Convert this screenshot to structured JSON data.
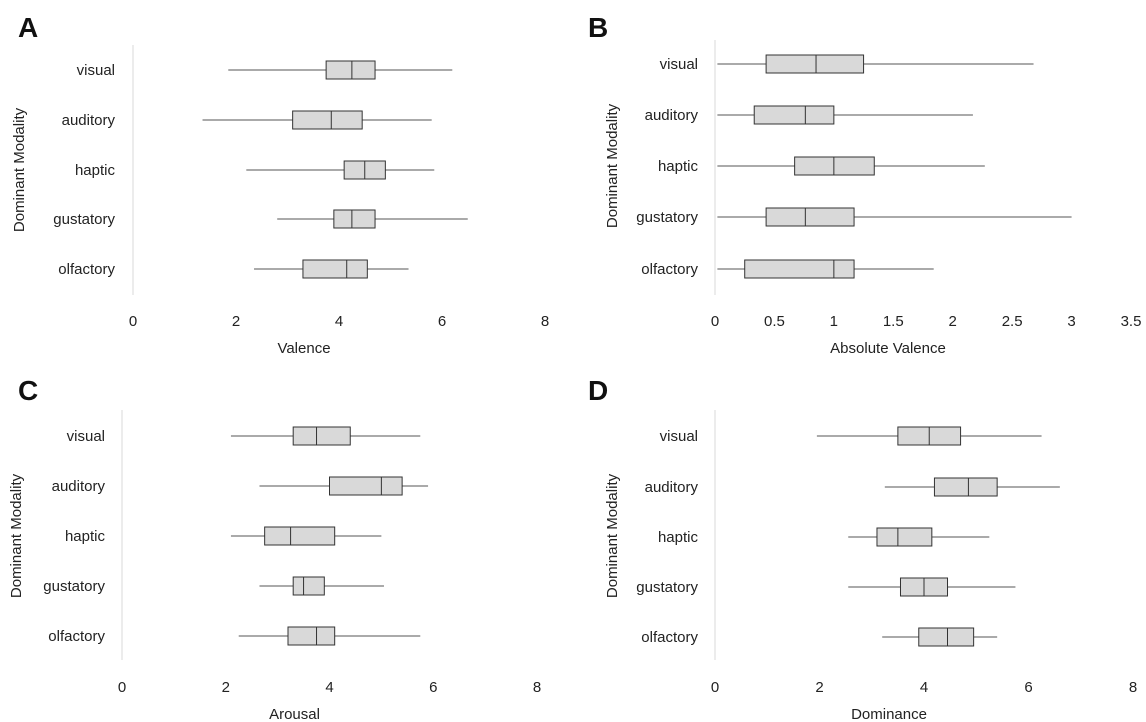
{
  "chart_data": [
    {
      "type": "box",
      "panel": "A",
      "xlabel": "Valence",
      "ylabel": "Dominant Modality",
      "xlim": [
        0,
        8
      ],
      "xticks": [
        "0",
        "2",
        "4",
        "6",
        "8"
      ],
      "categories": [
        "visual",
        "auditory",
        "haptic",
        "gustatory",
        "olfactory"
      ],
      "boxes": [
        {
          "min": 1.85,
          "q1": 3.75,
          "median": 4.25,
          "q3": 4.7,
          "max": 6.2
        },
        {
          "min": 1.35,
          "q1": 3.1,
          "median": 3.85,
          "q3": 4.45,
          "max": 5.8
        },
        {
          "min": 2.2,
          "q1": 4.1,
          "median": 4.5,
          "q3": 4.9,
          "max": 5.85
        },
        {
          "min": 2.8,
          "q1": 3.9,
          "median": 4.25,
          "q3": 4.7,
          "max": 6.5
        },
        {
          "min": 2.35,
          "q1": 3.3,
          "median": 4.15,
          "q3": 4.55,
          "max": 5.35
        }
      ]
    },
    {
      "type": "box",
      "panel": "B",
      "xlabel": "Absolute Valence",
      "ylabel": "Dominant Modality",
      "xlim": [
        0,
        3.5
      ],
      "xticks": [
        "0",
        "0.5",
        "1",
        "1.5",
        "2",
        "2.5",
        "3",
        "3.5"
      ],
      "categories": [
        "visual",
        "auditory",
        "haptic",
        "gustatory",
        "olfactory"
      ],
      "boxes": [
        {
          "min": 0.02,
          "q1": 0.43,
          "median": 0.85,
          "q3": 1.25,
          "max": 2.68
        },
        {
          "min": 0.02,
          "q1": 0.33,
          "median": 0.76,
          "q3": 1.0,
          "max": 2.17
        },
        {
          "min": 0.02,
          "q1": 0.67,
          "median": 1.0,
          "q3": 1.34,
          "max": 2.27
        },
        {
          "min": 0.02,
          "q1": 0.43,
          "median": 0.76,
          "q3": 1.17,
          "max": 3.0
        },
        {
          "min": 0.02,
          "q1": 0.25,
          "median": 1.0,
          "q3": 1.17,
          "max": 1.84
        }
      ]
    },
    {
      "type": "box",
      "panel": "C",
      "xlabel": "Arousal",
      "ylabel": "Dominant Modality",
      "xlim": [
        0,
        8
      ],
      "xticks": [
        "0",
        "2",
        "4",
        "6",
        "8"
      ],
      "categories": [
        "visual",
        "auditory",
        "haptic",
        "gustatory",
        "olfactory"
      ],
      "boxes": [
        {
          "min": 2.1,
          "q1": 3.3,
          "median": 3.75,
          "q3": 4.4,
          "max": 5.75
        },
        {
          "min": 2.65,
          "q1": 4.0,
          "median": 5.0,
          "q3": 5.4,
          "max": 5.9
        },
        {
          "min": 2.1,
          "q1": 2.75,
          "median": 3.25,
          "q3": 4.1,
          "max": 5.0
        },
        {
          "min": 2.65,
          "q1": 3.3,
          "median": 3.5,
          "q3": 3.9,
          "max": 5.05
        },
        {
          "min": 2.25,
          "q1": 3.2,
          "median": 3.75,
          "q3": 4.1,
          "max": 5.75
        }
      ]
    },
    {
      "type": "box",
      "panel": "D",
      "xlabel": "Dominance",
      "ylabel": "Dominant Modality",
      "xlim": [
        0,
        8
      ],
      "xticks": [
        "0",
        "2",
        "4",
        "6",
        "8"
      ],
      "categories": [
        "visual",
        "auditory",
        "haptic",
        "gustatory",
        "olfactory"
      ],
      "boxes": [
        {
          "min": 1.95,
          "q1": 3.5,
          "median": 4.1,
          "q3": 4.7,
          "max": 6.25
        },
        {
          "min": 3.25,
          "q1": 4.2,
          "median": 4.85,
          "q3": 5.4,
          "max": 6.6
        },
        {
          "min": 2.55,
          "q1": 3.1,
          "median": 3.5,
          "q3": 4.15,
          "max": 5.25
        },
        {
          "min": 2.55,
          "q1": 3.55,
          "median": 4.0,
          "q3": 4.45,
          "max": 5.75
        },
        {
          "min": 3.2,
          "q1": 3.9,
          "median": 4.45,
          "q3": 4.95,
          "max": 5.4
        }
      ]
    }
  ]
}
